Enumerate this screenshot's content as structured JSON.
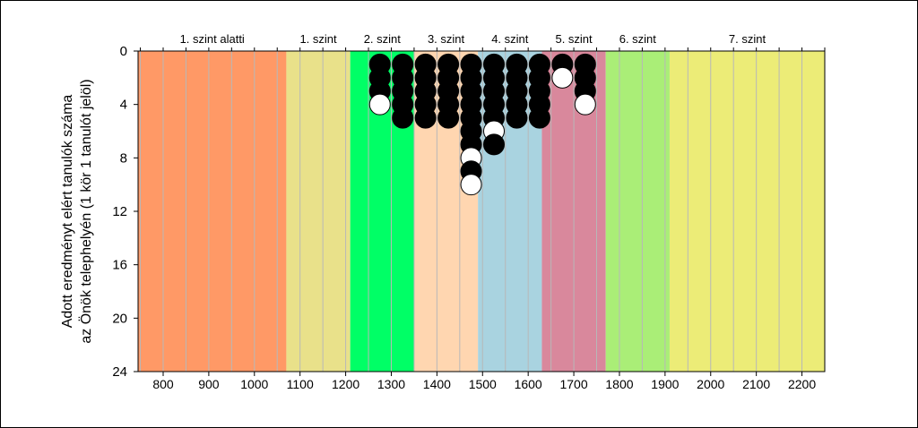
{
  "chart_data": {
    "type": "scatter",
    "title": "",
    "ylabel_lines": [
      "Adott eredményt elért tanulók száma",
      "az Önök telephelyén (1 kör 1 tanulót jelöl)"
    ],
    "xlim": [
      745,
      2250
    ],
    "ylim": [
      0,
      24
    ],
    "y_inverted": true,
    "x_ticks": [
      800,
      900,
      1000,
      1100,
      1200,
      1300,
      1400,
      1500,
      1600,
      1700,
      1800,
      1900,
      2000,
      2100,
      2200
    ],
    "y_ticks": [
      0,
      4,
      8,
      12,
      16,
      20,
      24
    ],
    "grid": true,
    "bands": [
      {
        "label": "1. szint alatti",
        "from": 745,
        "to": 1070,
        "color": "#FF9966"
      },
      {
        "label": "1. szint",
        "from": 1070,
        "to": 1210,
        "color": "#E9E18A"
      },
      {
        "label": "2. szint",
        "from": 1210,
        "to": 1350,
        "color": "#00FF66"
      },
      {
        "label": "3. szint",
        "from": 1350,
        "to": 1490,
        "color": "#FFD6B0"
      },
      {
        "label": "4. szint",
        "from": 1490,
        "to": 1630,
        "color": "#A9D3E0"
      },
      {
        "label": "5. szint",
        "from": 1630,
        "to": 1770,
        "color": "#D9889C"
      },
      {
        "label": "6. szint",
        "from": 1770,
        "to": 1910,
        "color": "#AAEE77"
      },
      {
        "label": "7. szint",
        "from": 1910,
        "to": 2250,
        "color": "#ECEC77"
      }
    ],
    "columns": [
      {
        "x": 1275,
        "colors": [
          "black",
          "black",
          "black",
          "white"
        ]
      },
      {
        "x": 1325,
        "colors": [
          "black",
          "black",
          "black",
          "black",
          "black"
        ]
      },
      {
        "x": 1375,
        "colors": [
          "black",
          "black",
          "black",
          "black",
          "black"
        ]
      },
      {
        "x": 1425,
        "colors": [
          "black",
          "black",
          "black",
          "black",
          "black"
        ]
      },
      {
        "x": 1475,
        "colors": [
          "black",
          "black",
          "black",
          "black",
          "black",
          "black",
          "black",
          "white",
          "black",
          "white"
        ]
      },
      {
        "x": 1525,
        "colors": [
          "black",
          "black",
          "black",
          "black",
          "black",
          "white",
          "black"
        ]
      },
      {
        "x": 1575,
        "colors": [
          "black",
          "black",
          "black",
          "black",
          "black"
        ]
      },
      {
        "x": 1625,
        "colors": [
          "black",
          "black",
          "black",
          "black",
          "black"
        ]
      },
      {
        "x": 1675,
        "colors": [
          "black",
          "white"
        ]
      },
      {
        "x": 1725,
        "colors": [
          "black",
          "black",
          "black",
          "white"
        ]
      }
    ]
  }
}
